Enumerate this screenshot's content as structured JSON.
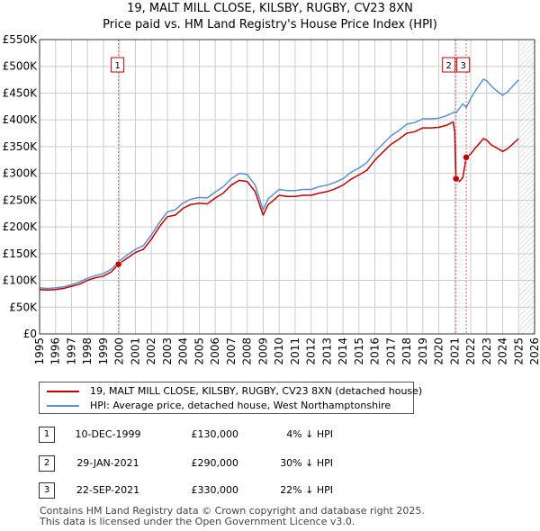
{
  "title": {
    "line1": "19, MALT MILL CLOSE, KILSBY, RUGBY, CV23 8XN",
    "line2": "Price paid vs. HM Land Registry's House Price Index (HPI)"
  },
  "colors": {
    "hpi": "#5b8fd4",
    "price_paid": "#c00000",
    "marker_line": "#e06070",
    "grid": "#cccccc",
    "plot_bg": "#ffffff",
    "future_hatch": "#999999"
  },
  "legend": {
    "property_label": "19, MALT MILL CLOSE, KILSBY, RUGBY, CV23 8XN (detached house)",
    "hpi_label": "HPI: Average price, detached house, West Northamptonshire"
  },
  "transactions": [
    {
      "num": "1",
      "date": "10-DEC-1999",
      "price": "£130,000",
      "hpi_diff": "4% ↓ HPI"
    },
    {
      "num": "2",
      "date": "29-JAN-2021",
      "price": "£290,000",
      "hpi_diff": "30% ↓ HPI"
    },
    {
      "num": "3",
      "date": "22-SEP-2021",
      "price": "£330,000",
      "hpi_diff": "22% ↓ HPI"
    }
  ],
  "footer": {
    "line1": "Contains HM Land Registry data © Crown copyright and database right 2025.",
    "line2": "This data is licensed under the Open Government Licence v3.0."
  },
  "chart_data": {
    "type": "line",
    "title": "Price paid vs. HM Land Registry's House Price Index (HPI)",
    "xlabel": "",
    "ylabel": "",
    "xlim": [
      1995,
      2026
    ],
    "ylim": [
      0,
      550000
    ],
    "y_ticks": [
      {
        "value": 0,
        "label": "£0"
      },
      {
        "value": 50000,
        "label": "£50K"
      },
      {
        "value": 100000,
        "label": "£100K"
      },
      {
        "value": 150000,
        "label": "£150K"
      },
      {
        "value": 200000,
        "label": "£200K"
      },
      {
        "value": 250000,
        "label": "£250K"
      },
      {
        "value": 300000,
        "label": "£300K"
      },
      {
        "value": 350000,
        "label": "£350K"
      },
      {
        "value": 400000,
        "label": "£400K"
      },
      {
        "value": 450000,
        "label": "£450K"
      },
      {
        "value": 500000,
        "label": "£500K"
      },
      {
        "value": 550000,
        "label": "£550K"
      }
    ],
    "x_ticks": [
      "1995",
      "1996",
      "1997",
      "1998",
      "1999",
      "2000",
      "2001",
      "2002",
      "2003",
      "2004",
      "2005",
      "2006",
      "2007",
      "2008",
      "2009",
      "2010",
      "2011",
      "2012",
      "2013",
      "2014",
      "2015",
      "2016",
      "2017",
      "2018",
      "2019",
      "2020",
      "2021",
      "2022",
      "2023",
      "2024",
      "2025",
      "2026"
    ],
    "data_end_year": 2025.05,
    "series": [
      {
        "name": "HPI: Average price, detached house, West Northamptonshire",
        "color": "#5b8fd4",
        "x": [
          1995.0,
          1995.5,
          1996.0,
          1996.5,
          1997.0,
          1997.5,
          1998.0,
          1998.5,
          1999.0,
          1999.5,
          1999.95,
          2000.5,
          2001.0,
          2001.5,
          2002.0,
          2002.5,
          2003.0,
          2003.5,
          2004.0,
          2004.5,
          2005.0,
          2005.5,
          2006.0,
          2006.5,
          2007.0,
          2007.5,
          2008.0,
          2008.5,
          2009.0,
          2009.3,
          2009.7,
          2010.0,
          2010.5,
          2011.0,
          2011.5,
          2012.0,
          2012.5,
          2013.0,
          2013.5,
          2014.0,
          2014.5,
          2015.0,
          2015.5,
          2016.0,
          2016.5,
          2017.0,
          2017.5,
          2018.0,
          2018.5,
          2019.0,
          2019.5,
          2020.0,
          2020.5,
          2021.0,
          2021.08,
          2021.5,
          2021.72,
          2022.0,
          2022.3,
          2022.6,
          2022.8,
          2023.0,
          2023.3,
          2023.6,
          2024.0,
          2024.3,
          2024.6,
          2025.0
        ],
        "values": [
          86000,
          85000,
          86000,
          88000,
          92000,
          97000,
          104000,
          109000,
          113000,
          121000,
          135000,
          148000,
          158000,
          165000,
          185000,
          208000,
          228000,
          232000,
          245000,
          252000,
          255000,
          254000,
          265000,
          275000,
          290000,
          300000,
          298000,
          278000,
          232000,
          252000,
          262000,
          270000,
          268000,
          268000,
          270000,
          270000,
          275000,
          278000,
          283000,
          290000,
          302000,
          310000,
          320000,
          340000,
          355000,
          370000,
          380000,
          392000,
          395000,
          402000,
          402000,
          403000,
          408000,
          415000,
          413000,
          430000,
          423000,
          440000,
          455000,
          468000,
          476000,
          473000,
          463000,
          455000,
          446000,
          452000,
          462000,
          475000
        ]
      },
      {
        "name": "19, MALT MILL CLOSE, KILSBY, RUGBY, CV23 8XN (detached house)",
        "color": "#c00000",
        "x": [
          1995.0,
          1995.5,
          1996.0,
          1996.5,
          1997.0,
          1997.5,
          1998.0,
          1998.5,
          1999.0,
          1999.5,
          1999.94,
          2000.5,
          2001.0,
          2001.5,
          2002.0,
          2002.5,
          2003.0,
          2003.5,
          2004.0,
          2004.5,
          2005.0,
          2005.5,
          2006.0,
          2006.5,
          2007.0,
          2007.5,
          2008.0,
          2008.5,
          2009.0,
          2009.3,
          2009.7,
          2010.0,
          2010.5,
          2011.0,
          2011.5,
          2012.0,
          2012.5,
          2013.0,
          2013.5,
          2014.0,
          2014.5,
          2015.0,
          2015.5,
          2016.0,
          2016.5,
          2017.0,
          2017.5,
          2018.0,
          2018.5,
          2019.0,
          2019.5,
          2020.0,
          2020.5,
          2020.9,
          2021.0,
          2021.08,
          2021.3,
          2021.5,
          2021.72,
          2022.0,
          2022.3,
          2022.6,
          2022.8,
          2023.0,
          2023.3,
          2023.6,
          2024.0,
          2024.3,
          2024.6,
          2025.0
        ],
        "values": [
          83000,
          82000,
          83000,
          85000,
          89000,
          93000,
          100000,
          105000,
          108000,
          116000,
          130000,
          142000,
          152000,
          158000,
          177000,
          200000,
          219000,
          222000,
          235000,
          242000,
          244000,
          243000,
          254000,
          263000,
          278000,
          287000,
          285000,
          266000,
          222000,
          241000,
          251000,
          259000,
          257000,
          257000,
          259000,
          259000,
          263000,
          266000,
          271000,
          278000,
          289000,
          297000,
          306000,
          325000,
          340000,
          354000,
          364000,
          375000,
          378000,
          385000,
          385000,
          386000,
          390000,
          396000,
          378000,
          290000,
          285000,
          292000,
          330000,
          336000,
          348000,
          358000,
          365000,
          362000,
          353000,
          348000,
          341000,
          346000,
          354000,
          365000
        ]
      }
    ],
    "sale_points": [
      {
        "label": "1",
        "x": 1999.94,
        "value": 130000,
        "date": "10-DEC-1999"
      },
      {
        "label": "2",
        "x": 2021.08,
        "value": 290000,
        "date": "29-JAN-2021"
      },
      {
        "label": "3",
        "x": 2021.72,
        "value": 330000,
        "date": "22-SEP-2021"
      }
    ]
  }
}
